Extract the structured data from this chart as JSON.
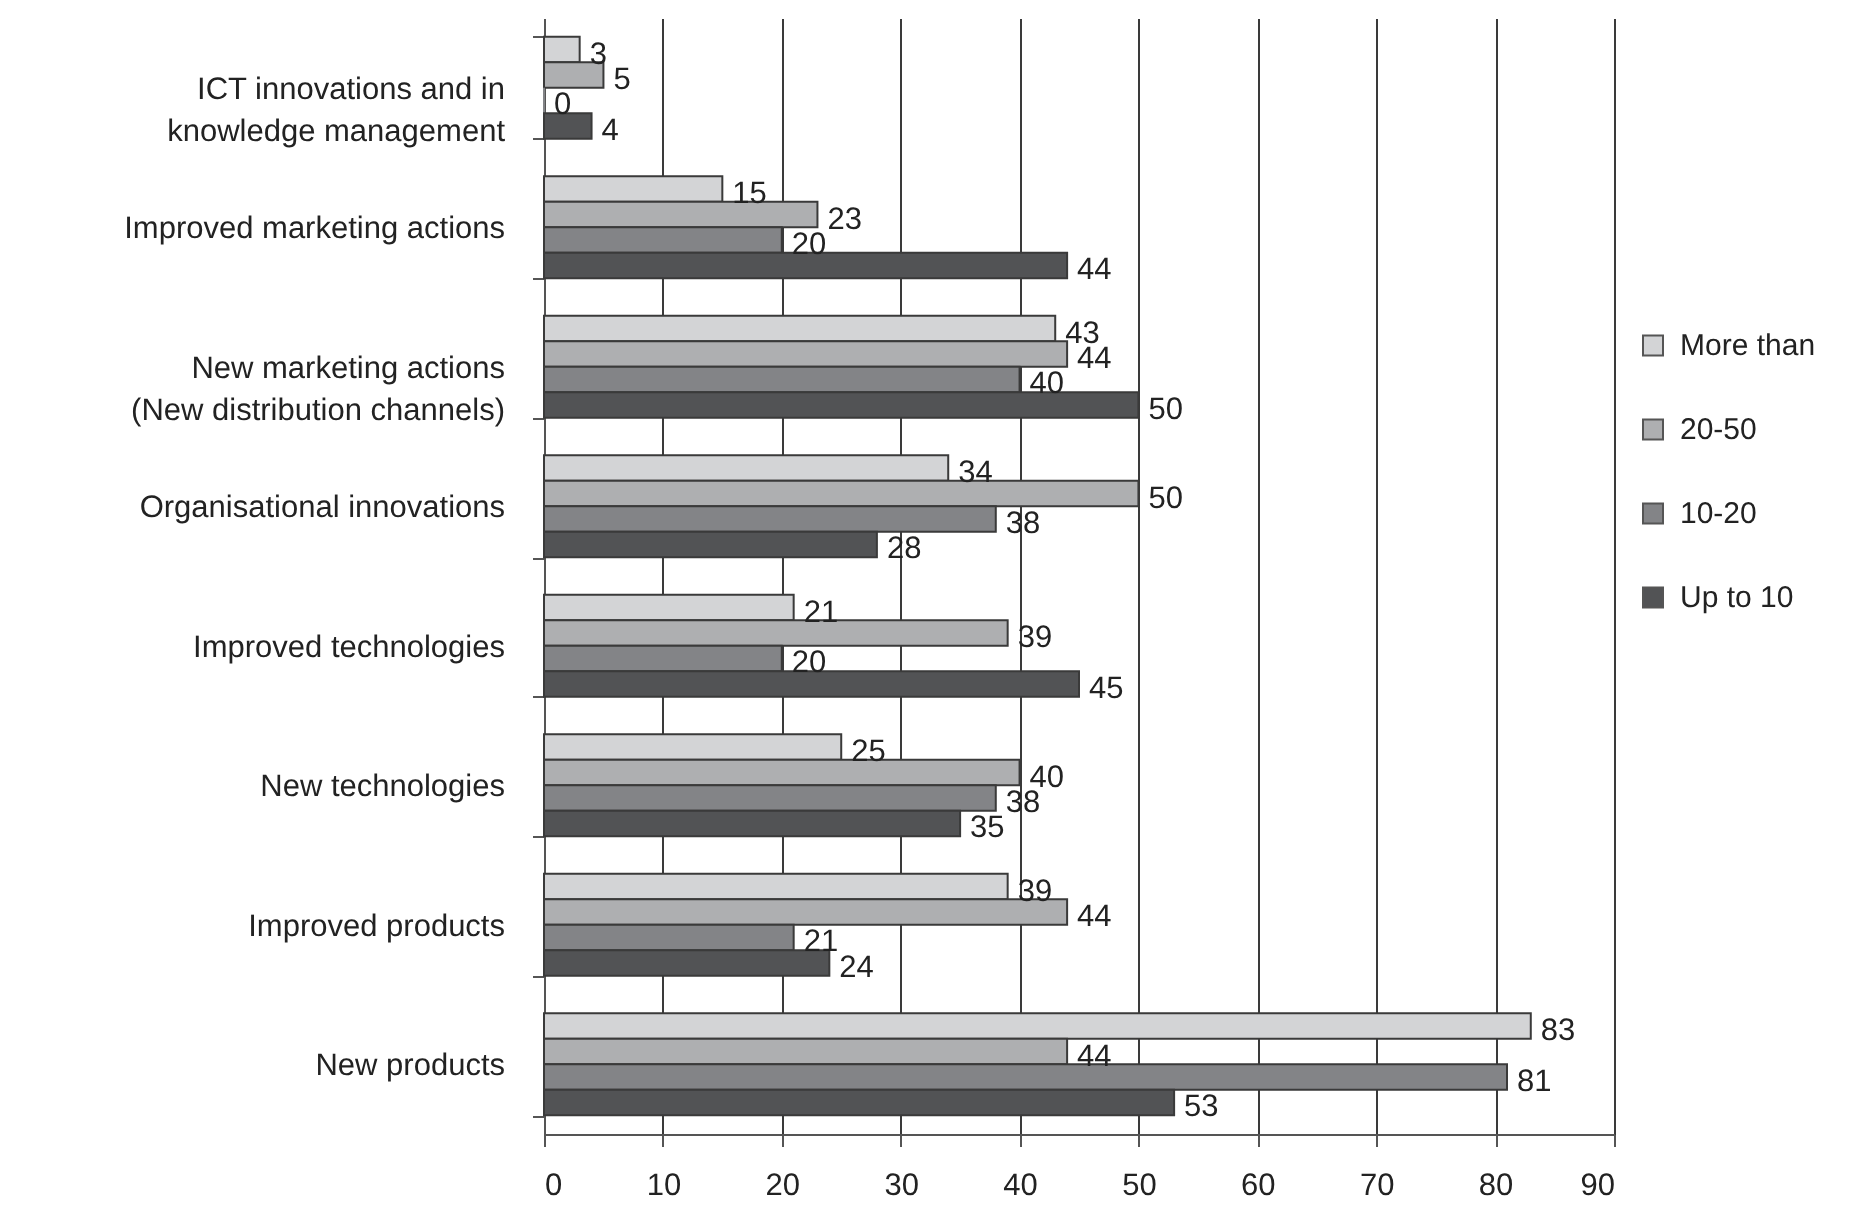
{
  "chart_data": {
    "type": "bar",
    "orientation": "horizontal",
    "categories": [
      "ICT innovations and in knowledge management",
      "Improved marketing actions",
      "New marketing actions (New distribution channels)",
      "Organisational innovations",
      "Improved technologies",
      "New technologies",
      "Improved products",
      "New products"
    ],
    "series": [
      {
        "name": "More than",
        "color": "#d3d4d6",
        "values": [
          3,
          15,
          43,
          34,
          21,
          25,
          39,
          83
        ]
      },
      {
        "name": "20-50",
        "color": "#aeafb1",
        "values": [
          5,
          23,
          44,
          50,
          39,
          40,
          44,
          44
        ]
      },
      {
        "name": "10-20",
        "color": "#838487",
        "values": [
          0,
          20,
          40,
          38,
          20,
          38,
          21,
          81
        ]
      },
      {
        "name": "Up to 10",
        "color": "#525355",
        "values": [
          4,
          44,
          50,
          28,
          45,
          35,
          24,
          53
        ]
      }
    ],
    "xlim": [
      0,
      90
    ],
    "xticks": [
      0,
      10,
      20,
      30,
      40,
      50,
      60,
      70,
      80,
      90
    ],
    "grid": "x",
    "legend": "right",
    "data_labels": true
  }
}
